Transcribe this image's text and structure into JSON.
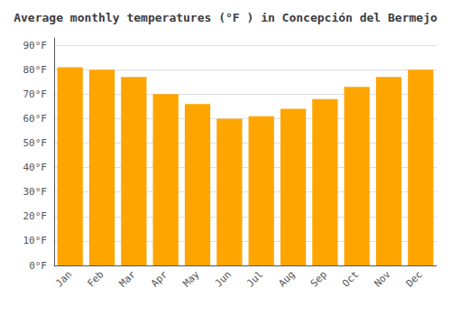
{
  "chart_data": {
    "type": "bar",
    "title": "Average monthly temperatures (°F ) in Concepción del Bermejo",
    "categories": [
      "Jan",
      "Feb",
      "Mar",
      "Apr",
      "May",
      "Jun",
      "Jul",
      "Aug",
      "Sep",
      "Oct",
      "Nov",
      "Dec"
    ],
    "values": [
      81,
      80,
      77,
      70,
      66,
      60,
      61,
      64,
      68,
      73,
      77,
      80
    ],
    "color": "#FFA500",
    "ylim": [
      0,
      93
    ],
    "yticks": [
      {
        "value": 0,
        "label": "0°F"
      },
      {
        "value": 10,
        "label": "10°F"
      },
      {
        "value": 20,
        "label": "20°F"
      },
      {
        "value": 30,
        "label": "30°F"
      },
      {
        "value": 40,
        "label": "40°F"
      },
      {
        "value": 50,
        "label": "50°F"
      },
      {
        "value": 60,
        "label": "60°F"
      },
      {
        "value": 70,
        "label": "70°F"
      },
      {
        "value": 80,
        "label": "80°F"
      },
      {
        "value": 90,
        "label": "90°F"
      }
    ],
    "grid": true
  }
}
